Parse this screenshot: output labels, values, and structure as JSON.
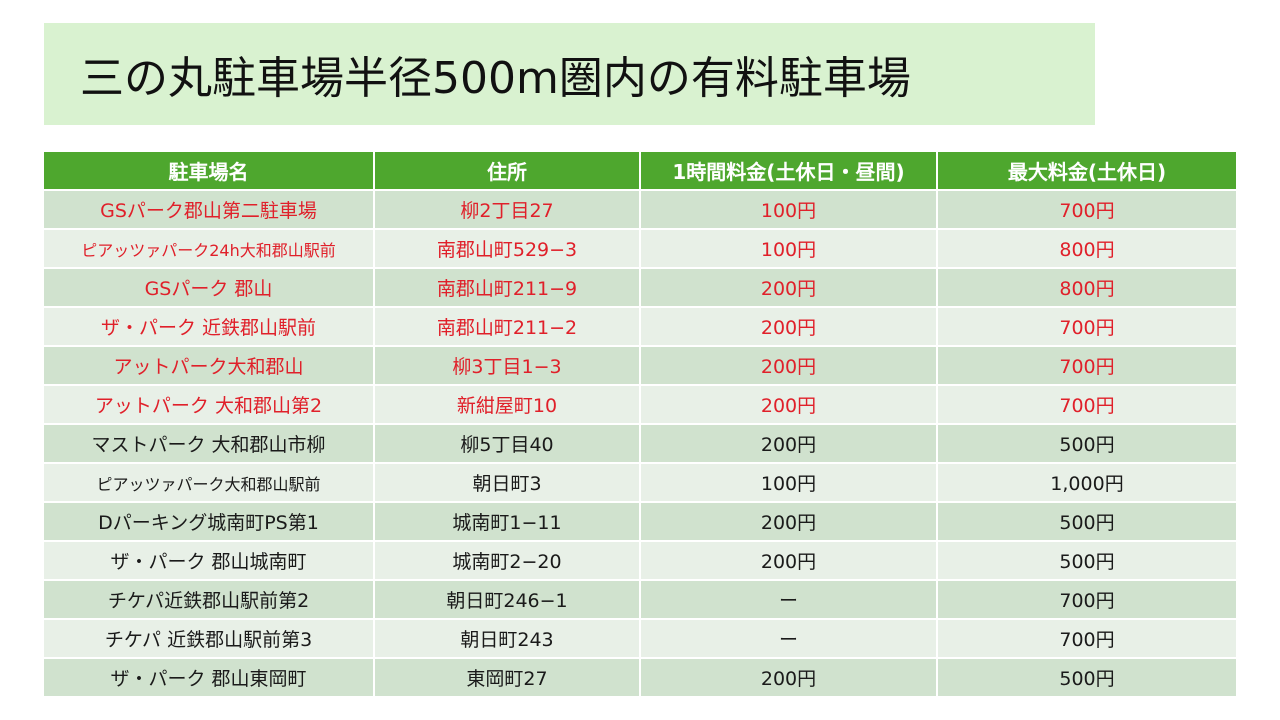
{
  "title": "三の丸駐車場半径500m圏内の有料駐車場",
  "colors": {
    "title_bg": "#d9f2d0",
    "header_bg": "#4ea72e",
    "row_odd_bg": "#d0e2ce",
    "row_even_bg": "#e8f0e7",
    "highlight_text": "#e0202a",
    "normal_text": "#1a1a1a"
  },
  "table": {
    "headers": [
      "駐車場名",
      "住所",
      "1時間料金(土休日・昼間)",
      "最大料金(土休日)"
    ],
    "rows": [
      {
        "name": "GSパーク郡山第二駐車場",
        "address": "柳2丁目27",
        "hourly": "100円",
        "max": "700円",
        "highlight": true
      },
      {
        "name": "ピアッツァパーク24h大和郡山駅前",
        "address": "南郡山町529−3",
        "hourly": "100円",
        "max": "800円",
        "highlight": true
      },
      {
        "name": "GSパーク 郡山",
        "address": "南郡山町211−9",
        "hourly": "200円",
        "max": "800円",
        "highlight": true
      },
      {
        "name": "ザ・パーク 近鉄郡山駅前",
        "address": "南郡山町211−2",
        "hourly": "200円",
        "max": "700円",
        "highlight": true
      },
      {
        "name": "アットパーク大和郡山",
        "address": "柳3丁目1−3",
        "hourly": "200円",
        "max": "700円",
        "highlight": true
      },
      {
        "name": "アットパーク 大和郡山第2",
        "address": "新紺屋町10",
        "hourly": "200円",
        "max": "700円",
        "highlight": true
      },
      {
        "name": "マストパーク 大和郡山市柳",
        "address": "柳5丁目40",
        "hourly": "200円",
        "max": "500円",
        "highlight": false
      },
      {
        "name": "ピアッツァパーク大和郡山駅前",
        "address": "朝日町3",
        "hourly": "100円",
        "max": "1,000円",
        "highlight": false
      },
      {
        "name": "Dパーキング城南町PS第1",
        "address": "城南町1−11",
        "hourly": "200円",
        "max": "500円",
        "highlight": false
      },
      {
        "name": "ザ・パーク 郡山城南町",
        "address": "城南町2−20",
        "hourly": "200円",
        "max": "500円",
        "highlight": false
      },
      {
        "name": "チケパ近鉄郡山駅前第2",
        "address": "朝日町246−1",
        "hourly": "ー",
        "max": "700円",
        "highlight": false
      },
      {
        "name": "チケパ 近鉄郡山駅前第3",
        "address": "朝日町243",
        "hourly": "ー",
        "max": "700円",
        "highlight": false
      },
      {
        "name": "ザ・パーク 郡山東岡町",
        "address": "東岡町27",
        "hourly": "200円",
        "max": "500円",
        "highlight": false
      }
    ]
  }
}
